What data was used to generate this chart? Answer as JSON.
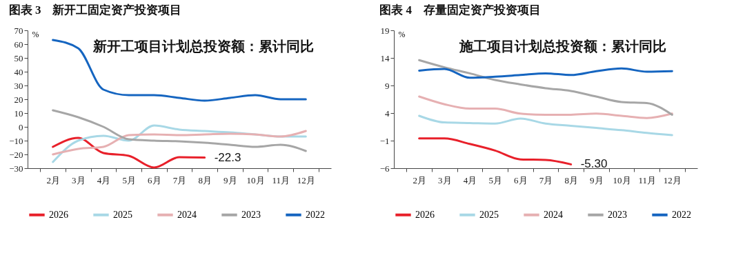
{
  "chart_data": [
    {
      "type": "line",
      "title": "图表 3　新开工固定资产投资项目",
      "ylabel": "%",
      "categories": [
        "2月",
        "3月",
        "4月",
        "5月",
        "6月",
        "7月",
        "8月",
        "9月",
        "10月",
        "11月",
        "12月"
      ],
      "ylim": [
        -30,
        70
      ],
      "yticks": [
        -30,
        -20,
        -10,
        0,
        10,
        20,
        30,
        40,
        50,
        60,
        70
      ],
      "legend": "bottom",
      "annotations": [
        "新开工项目计划总投资额：累计同比",
        {
          "text": "-22.3",
          "x": "8月",
          "y": -22.3
        }
      ],
      "series": [
        {
          "name": "2026",
          "color": "#e8202a",
          "values": [
            -14.5,
            -8,
            -19,
            -21,
            -29.5,
            -22,
            -22.3,
            null,
            null,
            null,
            null
          ]
        },
        {
          "name": "2025",
          "color": "#a8d8e6",
          "values": [
            -25.5,
            -10,
            -6.5,
            -10,
            1,
            -2,
            -3,
            -4,
            -5.5,
            -7,
            -7
          ]
        },
        {
          "name": "2024",
          "color": "#e6b0b2",
          "values": [
            -20,
            -16,
            -14.5,
            -6,
            -5.5,
            -6,
            -5.5,
            -5,
            -5.5,
            -7,
            -3
          ]
        },
        {
          "name": "2023",
          "color": "#a6a6a6",
          "values": [
            12,
            7,
            0,
            -9,
            -10,
            -10.5,
            -11.5,
            -13,
            -14.5,
            -13,
            -17.5
          ]
        },
        {
          "name": "2022",
          "color": "#1565c0",
          "values": [
            63,
            57,
            27,
            23,
            23,
            21,
            19,
            21,
            23,
            20,
            20
          ]
        }
      ]
    },
    {
      "type": "line",
      "title": "图表 4　存量固定资产投资项目",
      "ylabel": "%",
      "categories": [
        "2月",
        "3月",
        "4月",
        "5月",
        "6月",
        "7月",
        "8月",
        "9月",
        "10月",
        "11月",
        "12月"
      ],
      "ylim": [
        -6,
        19
      ],
      "yticks": [
        -6,
        -1,
        4,
        9,
        14,
        19
      ],
      "legend": "bottom",
      "annotations": [
        "施工项目计划总投资额：累计同比",
        {
          "text": "-5.30",
          "x": "8月",
          "y": -5.3
        }
      ],
      "series": [
        {
          "name": "2026",
          "color": "#e8202a",
          "values": [
            -0.6,
            -0.6,
            -1.6,
            -2.8,
            -4.4,
            -4.5,
            -5.3,
            null,
            null,
            null,
            null
          ]
        },
        {
          "name": "2025",
          "color": "#a8d8e6",
          "values": [
            3.5,
            2.3,
            2.2,
            2.1,
            3.0,
            2.1,
            1.7,
            1.3,
            0.9,
            0.4,
            0.0
          ]
        },
        {
          "name": "2024",
          "color": "#e6b0b2",
          "values": [
            7.0,
            5.6,
            4.8,
            4.8,
            3.9,
            3.7,
            3.7,
            3.9,
            3.5,
            3.1,
            3.9
          ]
        },
        {
          "name": "2023",
          "color": "#a6a6a6",
          "values": [
            13.6,
            12.3,
            11.2,
            10.0,
            9.2,
            8.5,
            8.0,
            7.0,
            6.0,
            5.8,
            3.7
          ]
        },
        {
          "name": "2022",
          "color": "#1565c0",
          "values": [
            11.7,
            12.0,
            10.4,
            10.6,
            10.9,
            11.2,
            10.9,
            11.6,
            12.1,
            11.5,
            11.6
          ]
        }
      ]
    }
  ]
}
